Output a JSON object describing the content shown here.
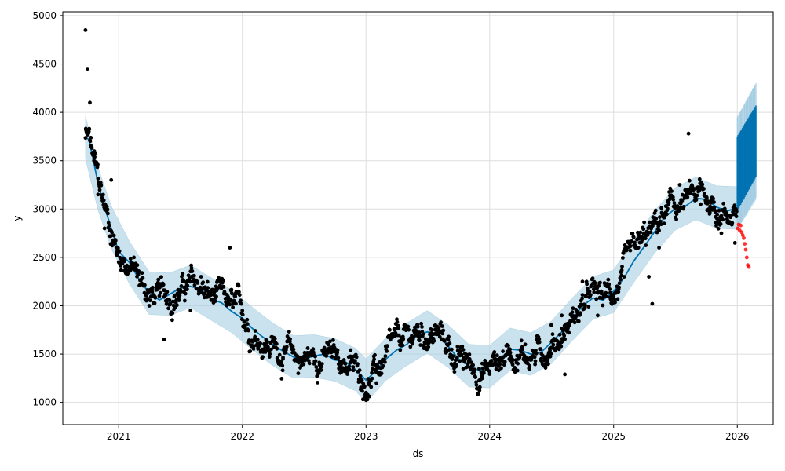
{
  "chart_data": {
    "type": "line",
    "title": "",
    "xlabel": "ds",
    "ylabel": "y",
    "x_tick_labels": [
      "2021",
      "2022",
      "2023",
      "2024",
      "2025",
      "2026"
    ],
    "x_ticks": [
      "2021-01-01",
      "2022-01-01",
      "2023-01-01",
      "2024-01-01",
      "2025-01-01",
      "2026-01-01"
    ],
    "y_tick_labels": [
      "1000",
      "1500",
      "2000",
      "2500",
      "3000",
      "3500",
      "4000",
      "4500",
      "5000"
    ],
    "y_ticks": [
      1000,
      1500,
      2000,
      2500,
      3000,
      3500,
      4000,
      4500,
      5000
    ],
    "xlim": [
      "2020-07-20",
      "2026-04-17"
    ],
    "ylim": [
      770,
      5040
    ],
    "grid": true,
    "colors": {
      "observed": "#000000",
      "forecast": "#0072b2",
      "interval": "#a6cee3",
      "actual_future": "#ff0000",
      "grid": "#dddddd"
    },
    "series": [
      {
        "kind": "forecast_line",
        "points": [
          [
            "2020-09-25",
            3740
          ],
          [
            "2020-10-05",
            3720
          ],
          [
            "2020-10-15",
            3560
          ],
          [
            "2020-10-28",
            3330
          ],
          [
            "2020-11-15",
            3080
          ],
          [
            "2020-12-10",
            2800
          ],
          [
            "2021-01-01",
            2560
          ],
          [
            "2021-02-01",
            2450
          ],
          [
            "2021-03-01",
            2280
          ],
          [
            "2021-04-01",
            2130
          ],
          [
            "2021-05-01",
            2060
          ],
          [
            "2021-06-01",
            2120
          ],
          [
            "2021-07-01",
            2180
          ],
          [
            "2021-08-01",
            2200
          ],
          [
            "2021-09-01",
            2170
          ],
          [
            "2021-10-01",
            2070
          ],
          [
            "2021-11-01",
            2030
          ],
          [
            "2021-12-01",
            1940
          ],
          [
            "2022-01-01",
            1870
          ],
          [
            "2022-02-01",
            1760
          ],
          [
            "2022-03-01",
            1680
          ],
          [
            "2022-04-01",
            1600
          ],
          [
            "2022-05-01",
            1530
          ],
          [
            "2022-06-01",
            1470
          ],
          [
            "2022-07-01",
            1450
          ],
          [
            "2022-08-01",
            1480
          ],
          [
            "2022-09-01",
            1500
          ],
          [
            "2022-10-01",
            1440
          ],
          [
            "2022-11-01",
            1420
          ],
          [
            "2022-12-01",
            1340
          ],
          [
            "2023-01-01",
            1230
          ],
          [
            "2023-02-01",
            1330
          ],
          [
            "2023-03-01",
            1450
          ],
          [
            "2023-04-01",
            1540
          ],
          [
            "2023-05-01",
            1600
          ],
          [
            "2023-06-01",
            1690
          ],
          [
            "2023-07-01",
            1730
          ],
          [
            "2023-08-01",
            1700
          ],
          [
            "2023-09-01",
            1580
          ],
          [
            "2023-10-01",
            1450
          ],
          [
            "2023-11-01",
            1380
          ],
          [
            "2023-12-01",
            1330
          ],
          [
            "2024-01-01",
            1370
          ],
          [
            "2024-02-01",
            1450
          ],
          [
            "2024-03-01",
            1550
          ],
          [
            "2024-04-01",
            1540
          ],
          [
            "2024-05-01",
            1500
          ],
          [
            "2024-06-01",
            1520
          ],
          [
            "2024-07-01",
            1620
          ],
          [
            "2024-08-01",
            1730
          ],
          [
            "2024-09-01",
            1860
          ],
          [
            "2024-10-01",
            2000
          ],
          [
            "2024-11-01",
            2080
          ],
          [
            "2024-12-01",
            2060
          ],
          [
            "2025-01-01",
            2150
          ],
          [
            "2025-02-01",
            2290
          ],
          [
            "2025-03-01",
            2460
          ],
          [
            "2025-04-01",
            2610
          ],
          [
            "2025-05-01",
            2760
          ],
          [
            "2025-06-01",
            2920
          ],
          [
            "2025-07-01",
            3000
          ],
          [
            "2025-08-01",
            3030
          ],
          [
            "2025-09-01",
            3110
          ],
          [
            "2025-10-01",
            3100
          ],
          [
            "2025-11-01",
            3020
          ],
          [
            "2025-12-01",
            2980
          ],
          [
            "2026-01-01",
            3010
          ]
        ]
      },
      {
        "kind": "uncertainty_interval",
        "points": [
          [
            "2020-09-25",
            3520,
            3960
          ],
          [
            "2020-11-01",
            2990,
            3430
          ],
          [
            "2020-12-10",
            2590,
            3030
          ],
          [
            "2021-02-01",
            2230,
            2670
          ],
          [
            "2021-04-01",
            1910,
            2350
          ],
          [
            "2021-06-01",
            1900,
            2340
          ],
          [
            "2021-08-01",
            1980,
            2420
          ],
          [
            "2021-10-01",
            1850,
            2290
          ],
          [
            "2021-12-01",
            1720,
            2160
          ],
          [
            "2022-02-01",
            1540,
            1980
          ],
          [
            "2022-04-01",
            1380,
            1820
          ],
          [
            "2022-06-01",
            1250,
            1690
          ],
          [
            "2022-08-01",
            1260,
            1700
          ],
          [
            "2022-10-01",
            1220,
            1660
          ],
          [
            "2022-12-01",
            1120,
            1560
          ],
          [
            "2023-01-01",
            1000,
            1450
          ],
          [
            "2023-03-01",
            1230,
            1670
          ],
          [
            "2023-05-01",
            1380,
            1820
          ],
          [
            "2023-07-01",
            1510,
            1950
          ],
          [
            "2023-09-01",
            1360,
            1800
          ],
          [
            "2023-11-01",
            1160,
            1600
          ],
          [
            "2024-01-01",
            1150,
            1590
          ],
          [
            "2024-03-01",
            1330,
            1770
          ],
          [
            "2024-05-01",
            1280,
            1720
          ],
          [
            "2024-07-01",
            1400,
            1840
          ],
          [
            "2024-09-01",
            1640,
            2080
          ],
          [
            "2024-11-01",
            1860,
            2300
          ],
          [
            "2025-01-01",
            1930,
            2370
          ],
          [
            "2025-03-01",
            2240,
            2680
          ],
          [
            "2025-05-01",
            2540,
            2980
          ],
          [
            "2025-07-01",
            2780,
            3220
          ],
          [
            "2025-09-01",
            2890,
            3330
          ],
          [
            "2025-11-01",
            2800,
            3240
          ],
          [
            "2026-01-01",
            2790,
            3230
          ],
          [
            "2026-02-25",
            3100,
            3400
          ]
        ]
      },
      {
        "kind": "future_forecast_band",
        "start": "2026-01-01",
        "end": "2026-02-25",
        "inner_low_start": 2980,
        "inner_low_end": 3330,
        "inner_high_start": 3750,
        "inner_high_end": 4070,
        "outer_low_start": 2790,
        "outer_low_end": 3120,
        "outer_high_start": 3950,
        "outer_high_end": 4300
      },
      {
        "kind": "observed_anchors",
        "points": [
          [
            "2020-09-25",
            4850
          ],
          [
            "2020-10-01",
            4450
          ],
          [
            "2020-10-08",
            4100
          ],
          [
            "2020-10-20",
            3500
          ],
          [
            "2020-11-01",
            3150
          ],
          [
            "2020-11-20",
            2800
          ],
          [
            "2020-12-10",
            3300
          ],
          [
            "2021-01-01",
            2450
          ],
          [
            "2021-02-15",
            2500
          ],
          [
            "2021-04-01",
            2000
          ],
          [
            "2021-05-15",
            1650
          ],
          [
            "2021-06-15",
            2100
          ],
          [
            "2021-08-01",
            1950
          ],
          [
            "2021-09-01",
            2300
          ],
          [
            "2021-10-15",
            2200
          ],
          [
            "2021-11-25",
            2600
          ],
          [
            "2022-01-01",
            1950
          ],
          [
            "2022-02-15",
            1650
          ],
          [
            "2022-03-15",
            1550
          ],
          [
            "2022-05-01",
            1450
          ],
          [
            "2022-06-15",
            1300
          ],
          [
            "2022-08-01",
            1400
          ],
          [
            "2022-09-15",
            1550
          ],
          [
            "2022-11-01",
            1400
          ],
          [
            "2022-12-15",
            1250
          ],
          [
            "2023-01-01",
            1100
          ],
          [
            "2023-02-01",
            1200
          ],
          [
            "2023-03-01",
            1550
          ],
          [
            "2023-04-15",
            1600
          ],
          [
            "2023-06-01",
            1800
          ],
          [
            "2023-07-15",
            1750
          ],
          [
            "2023-09-01",
            1600
          ],
          [
            "2023-10-15",
            1350
          ],
          [
            "2023-12-01",
            1350
          ],
          [
            "2024-01-15",
            1450
          ],
          [
            "2024-03-01",
            1550
          ],
          [
            "2024-04-15",
            1600
          ],
          [
            "2024-06-01",
            1450
          ],
          [
            "2024-07-01",
            1800
          ],
          [
            "2024-08-01",
            1900
          ],
          [
            "2024-08-10",
            1290
          ],
          [
            "2024-10-01",
            2250
          ],
          [
            "2024-11-15",
            1900
          ],
          [
            "2025-01-01",
            2100
          ],
          [
            "2025-02-01",
            2300
          ],
          [
            "2025-03-15",
            2600
          ],
          [
            "2025-04-15",
            2300
          ],
          [
            "2025-04-25",
            2020
          ],
          [
            "2025-05-15",
            2600
          ],
          [
            "2025-06-15",
            3100
          ],
          [
            "2025-07-15",
            3250
          ],
          [
            "2025-08-10",
            3780
          ],
          [
            "2025-08-25",
            3200
          ],
          [
            "2025-09-15",
            3050
          ],
          [
            "2025-10-15",
            3000
          ],
          [
            "2025-11-15",
            2750
          ],
          [
            "2025-12-25",
            2650
          ]
        ]
      },
      {
        "kind": "actual_future",
        "points": [
          [
            "2026-01-02",
            2800
          ],
          [
            "2026-01-05",
            2840
          ],
          [
            "2026-01-08",
            2780
          ],
          [
            "2026-01-11",
            2830
          ],
          [
            "2026-01-14",
            2760
          ],
          [
            "2026-01-17",
            2730
          ],
          [
            "2026-01-20",
            2700
          ],
          [
            "2026-01-23",
            2640
          ],
          [
            "2026-01-26",
            2580
          ],
          [
            "2026-01-29",
            2500
          ],
          [
            "2026-02-01",
            2420
          ],
          [
            "2026-02-04",
            2400
          ]
        ]
      }
    ]
  }
}
